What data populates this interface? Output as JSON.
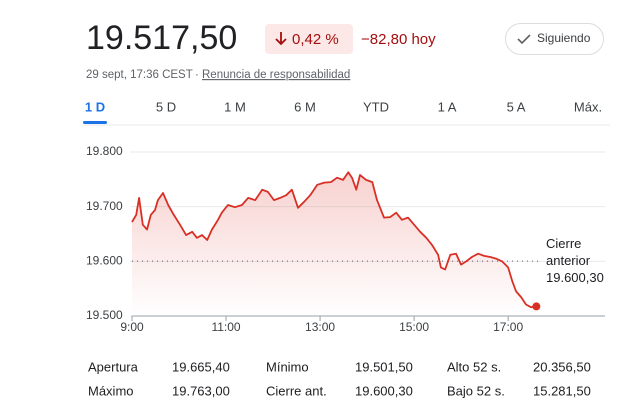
{
  "header": {
    "price": "19.517,50",
    "change_percent": "0,42 %",
    "change_today": "−82,80 hoy",
    "follow_button": "Siguiendo",
    "timestamp": "29 sept, 17:36 CEST",
    "separator": "·",
    "disclaimer": "Renuncia de responsabilidad"
  },
  "tabs": [
    "1 D",
    "5 D",
    "1 M",
    "6 M",
    "YTD",
    "1 A",
    "5 A",
    "Máx."
  ],
  "chart_data": {
    "type": "line",
    "color": "#d93025",
    "x": [
      9.0,
      9.09,
      9.15,
      9.23,
      9.32,
      9.4,
      9.49,
      9.55,
      9.66,
      9.77,
      9.89,
      10.02,
      10.15,
      10.28,
      10.38,
      10.49,
      10.6,
      10.7,
      10.83,
      10.91,
      11.04,
      11.19,
      11.34,
      11.47,
      11.62,
      11.77,
      11.89,
      12.02,
      12.15,
      12.28,
      12.4,
      12.53,
      12.66,
      12.79,
      12.94,
      13.09,
      13.23,
      13.36,
      13.49,
      13.6,
      13.68,
      13.77,
      13.85,
      13.98,
      14.11,
      14.21,
      14.36,
      14.49,
      14.62,
      14.74,
      14.87,
      15.0,
      15.13,
      15.26,
      15.38,
      15.51,
      15.57,
      15.66,
      15.77,
      15.89,
      16.0,
      16.11,
      16.23,
      16.36,
      16.49,
      16.62,
      16.74,
      16.87,
      17.0,
      17.09,
      17.17,
      17.28,
      17.38,
      17.49,
      17.6
    ],
    "values": [
      19672,
      19685,
      19716,
      19667,
      19658,
      19685,
      19694,
      19712,
      19725,
      19703,
      19685,
      19667,
      19648,
      19654,
      19643,
      19648,
      19639,
      19658,
      19676,
      19689,
      19703,
      19699,
      19703,
      19716,
      19712,
      19731,
      19727,
      19712,
      19716,
      19721,
      19731,
      19698,
      19709,
      19721,
      19740,
      19744,
      19745,
      19753,
      19749,
      19763,
      19753,
      19731,
      19758,
      19749,
      19745,
      19712,
      19680,
      19681,
      19689,
      19676,
      19680,
      19667,
      19654,
      19643,
      19630,
      19612,
      19589,
      19585,
      19612,
      19614,
      19594,
      19600,
      19608,
      19614,
      19610,
      19608,
      19605,
      19600,
      19589,
      19563,
      19545,
      19534,
      19521,
      19516,
      19517.5
    ],
    "xlim": [
      9,
      19.06
    ],
    "ylim": [
      19500,
      19822
    ],
    "xticks": [
      {
        "value": 9,
        "label": "9:00"
      },
      {
        "value": 11,
        "label": "11:00"
      },
      {
        "value": 13,
        "label": "13:00"
      },
      {
        "value": 15,
        "label": "15:00"
      },
      {
        "value": 17,
        "label": "17:00"
      }
    ],
    "yticks": [
      {
        "value": 19500,
        "label": "19.500"
      },
      {
        "value": 19600,
        "label": "19.600"
      },
      {
        "value": 19700,
        "label": "19.700"
      },
      {
        "value": 19800,
        "label": "19.800"
      }
    ],
    "grid": true,
    "previous_close": {
      "label": "Cierre anterior",
      "value": 19600.3,
      "value_label": "19.600,30"
    }
  },
  "stats": [
    [
      {
        "label": "Apertura",
        "value": "19.665,40"
      },
      {
        "label": "Mínimo",
        "value": "19.501,50"
      },
      {
        "label": "Alto 52 s.",
        "value": "20.356,50"
      }
    ],
    [
      {
        "label": "Máximo",
        "value": "19.763,00"
      },
      {
        "label": "Cierre ant.",
        "value": "19.600,30"
      },
      {
        "label": "Bajo 52 s.",
        "value": "15.281,50"
      }
    ]
  ]
}
